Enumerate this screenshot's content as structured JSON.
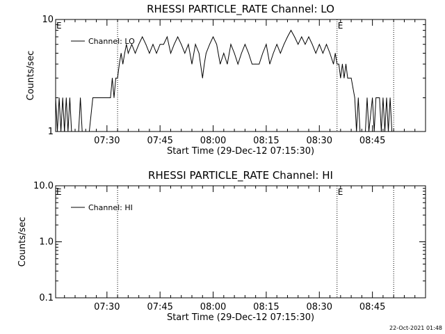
{
  "timestamp": "22-Oct-2021 01:48",
  "chart_data": [
    {
      "type": "line",
      "title": "RHESSI PARTICLE_RATE Channel: LO",
      "xlabel": "Start Time (29-Dec-12 07:15:30)",
      "ylabel": "Counts/sec",
      "yscale": "log",
      "ylim": [
        1,
        10
      ],
      "xlim": [
        "07:15:30",
        "09:00:00"
      ],
      "y_ticks": [
        "1",
        "10"
      ],
      "x_ticks": [
        "07:30",
        "07:45",
        "08:00",
        "08:15",
        "08:30",
        "08:45"
      ],
      "legend": "top-left",
      "event_lines": [
        {
          "time": "07:33:00",
          "label": ""
        },
        {
          "time": "08:35:00",
          "label": "E"
        },
        {
          "time": "08:51:00",
          "label": ""
        }
      ],
      "start_marker_label": "E",
      "series": [
        {
          "name": "Channel: LO",
          "color": "#000000",
          "points": [
            [
              "07:15:30",
              2
            ],
            [
              "07:16:00",
              1
            ],
            [
              "07:16:30",
              2
            ],
            [
              "07:17:00",
              1
            ],
            [
              "07:17:30",
              2
            ],
            [
              "07:18:00",
              1
            ],
            [
              "07:18:30",
              2
            ],
            [
              "07:19:00",
              1
            ],
            [
              "07:19:30",
              2
            ],
            [
              "07:20:00",
              1
            ],
            [
              "07:21:00",
              1
            ],
            [
              "07:22:00",
              1
            ],
            [
              "07:22:30",
              2
            ],
            [
              "07:23:00",
              1
            ],
            [
              "07:25:00",
              1
            ],
            [
              "07:26:00",
              2
            ],
            [
              "07:27:30",
              2
            ],
            [
              "07:30:00",
              2
            ],
            [
              "07:31:00",
              2
            ],
            [
              "07:31:30",
              3
            ],
            [
              "07:32:00",
              2
            ],
            [
              "07:32:30",
              3
            ],
            [
              "07:33:00",
              3
            ],
            [
              "07:33:30",
              4
            ],
            [
              "07:34:00",
              5
            ],
            [
              "07:34:30",
              4
            ],
            [
              "07:35:00",
              5
            ],
            [
              "07:35:30",
              6
            ],
            [
              "07:36:00",
              5
            ],
            [
              "07:37:00",
              6
            ],
            [
              "07:38:00",
              5
            ],
            [
              "07:39:00",
              6
            ],
            [
              "07:40:00",
              7
            ],
            [
              "07:41:00",
              6
            ],
            [
              "07:42:00",
              5
            ],
            [
              "07:43:00",
              6
            ],
            [
              "07:44:00",
              5
            ],
            [
              "07:45:00",
              6
            ],
            [
              "07:46:00",
              6
            ],
            [
              "07:47:00",
              7
            ],
            [
              "07:48:00",
              5
            ],
            [
              "07:49:00",
              6
            ],
            [
              "07:50:00",
              7
            ],
            [
              "07:51:00",
              6
            ],
            [
              "07:52:00",
              5
            ],
            [
              "07:53:00",
              6
            ],
            [
              "07:54:00",
              4
            ],
            [
              "07:55:00",
              6
            ],
            [
              "07:56:00",
              5
            ],
            [
              "07:57:00",
              3
            ],
            [
              "07:57:30",
              4
            ],
            [
              "07:58:00",
              5
            ],
            [
              "07:59:00",
              6
            ],
            [
              "08:00:00",
              7
            ],
            [
              "08:01:00",
              6
            ],
            [
              "08:02:00",
              4
            ],
            [
              "08:03:00",
              5
            ],
            [
              "08:04:00",
              4
            ],
            [
              "08:05:00",
              6
            ],
            [
              "08:06:00",
              5
            ],
            [
              "08:07:00",
              4
            ],
            [
              "08:08:00",
              5
            ],
            [
              "08:09:00",
              6
            ],
            [
              "08:10:00",
              5
            ],
            [
              "08:11:00",
              4
            ],
            [
              "08:12:00",
              4
            ],
            [
              "08:13:00",
              4
            ],
            [
              "08:14:00",
              5
            ],
            [
              "08:15:00",
              6
            ],
            [
              "08:16:00",
              4
            ],
            [
              "08:17:00",
              5
            ],
            [
              "08:18:00",
              6
            ],
            [
              "08:19:00",
              5
            ],
            [
              "08:20:00",
              6
            ],
            [
              "08:21:00",
              7
            ],
            [
              "08:22:00",
              8
            ],
            [
              "08:23:00",
              7
            ],
            [
              "08:24:00",
              6
            ],
            [
              "08:25:00",
              7
            ],
            [
              "08:26:00",
              6
            ],
            [
              "08:27:00",
              7
            ],
            [
              "08:28:00",
              6
            ],
            [
              "08:29:00",
              5
            ],
            [
              "08:30:00",
              6
            ],
            [
              "08:31:00",
              5
            ],
            [
              "08:32:00",
              6
            ],
            [
              "08:33:00",
              5
            ],
            [
              "08:34:00",
              4
            ],
            [
              "08:34:30",
              5
            ],
            [
              "08:35:00",
              4
            ],
            [
              "08:35:30",
              4
            ],
            [
              "08:36:00",
              3
            ],
            [
              "08:36:30",
              4
            ],
            [
              "08:37:00",
              3
            ],
            [
              "08:37:30",
              4
            ],
            [
              "08:38:00",
              3
            ],
            [
              "08:39:00",
              3
            ],
            [
              "08:40:00",
              2
            ],
            [
              "08:40:30",
              1
            ],
            [
              "08:41:00",
              2
            ],
            [
              "08:41:30",
              1
            ],
            [
              "08:43:00",
              1
            ],
            [
              "08:43:30",
              2
            ],
            [
              "08:44:00",
              1
            ],
            [
              "08:45:00",
              2
            ],
            [
              "08:45:30",
              1
            ],
            [
              "08:46:00",
              2
            ],
            [
              "08:47:00",
              2
            ],
            [
              "08:47:30",
              1
            ],
            [
              "08:48:00",
              2
            ],
            [
              "08:48:30",
              1
            ],
            [
              "08:49:00",
              2
            ],
            [
              "08:49:30",
              1
            ],
            [
              "08:50:00",
              2
            ],
            [
              "08:50:30",
              1
            ]
          ]
        }
      ]
    },
    {
      "type": "line",
      "title": "RHESSI PARTICLE_RATE Channel: HI",
      "xlabel": "Start Time (29-Dec-12 07:15:30)",
      "ylabel": "Counts/sec",
      "yscale": "log",
      "ylim": [
        0.1,
        10
      ],
      "xlim": [
        "07:15:30",
        "09:00:00"
      ],
      "y_ticks": [
        "0.1",
        "1.0",
        "10.0"
      ],
      "x_ticks": [
        "07:30",
        "07:45",
        "08:00",
        "08:15",
        "08:30",
        "08:45"
      ],
      "legend": "top-left",
      "event_lines": [
        {
          "time": "07:33:00",
          "label": ""
        },
        {
          "time": "08:35:00",
          "label": "E"
        },
        {
          "time": "08:51:00",
          "label": ""
        }
      ],
      "start_marker_label": "E",
      "series": [
        {
          "name": "Channel: HI",
          "color": "#000000",
          "points": []
        }
      ]
    }
  ]
}
